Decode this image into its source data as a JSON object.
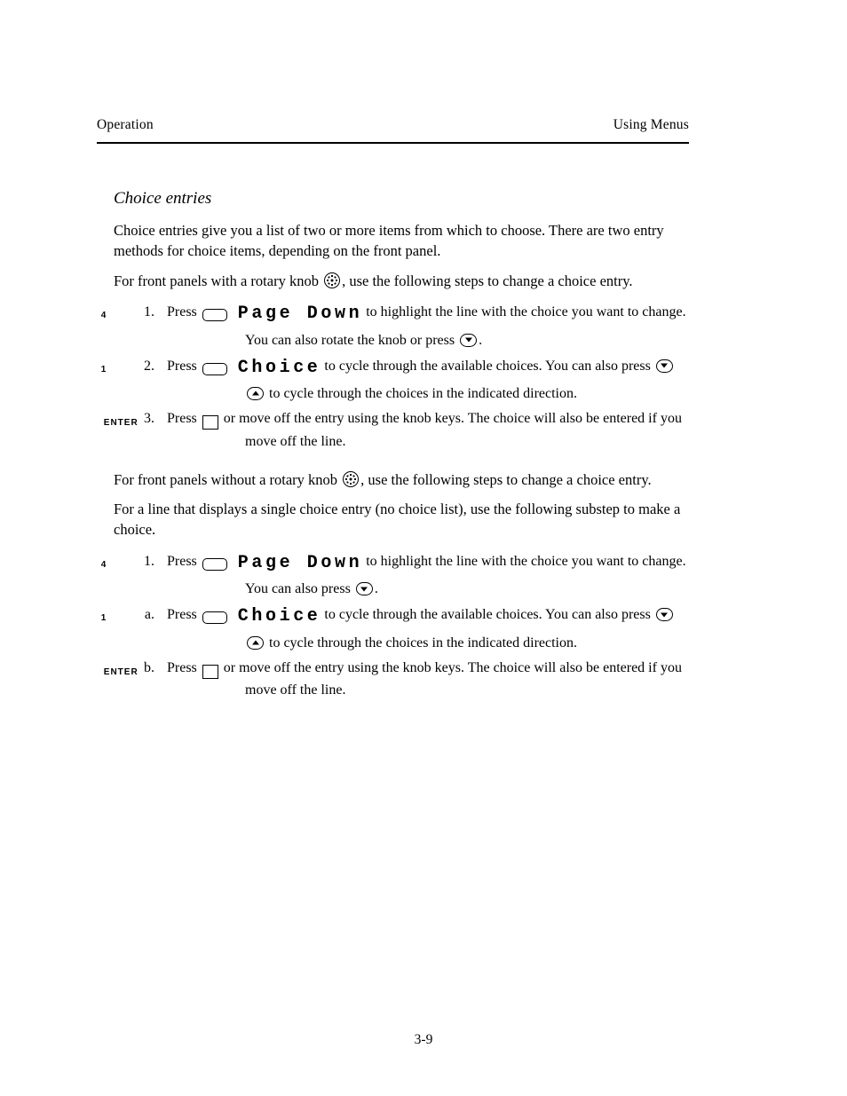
{
  "header": {
    "left": "Operation",
    "right": "Using Menus"
  },
  "intro": {
    "title": "Choice entries",
    "p1": "Choice entries give you a list of two or more items from which to choose. There are two entry methods for choice items, depending on the front panel."
  },
  "front1": {
    "heading_prefix": "For front panels with a rotary knob",
    "heading_icon": "dial-icon",
    "heading_suffix": ", use the following steps to change a choice entry.",
    "steps": [
      {
        "n": "1.",
        "type": "softkey",
        "key": "4",
        "soft": "Page Down",
        "rest": " to highlight the line with the choice you want to change. You can also rotate the knob or press ",
        "arrows": [
          "down"
        ],
        "tail": "."
      },
      {
        "n": "2.",
        "type": "softkey",
        "key": "1",
        "soft": "Choice",
        "rest": " to cycle through the available choices. You can also press ",
        "arrows": [
          "down",
          "up"
        ],
        "tail": " to cycle through the choices in the indicated direction."
      },
      {
        "n": "3.",
        "type": "enter",
        "rest": " or move off the entry using the knob keys. The choice will also be entered if you move off the line."
      }
    ],
    "after_prefix": "For front panels without a rotary knob",
    "after_icon": "dial-icon",
    "after_suffix": ", use the following steps to change a choice entry."
  },
  "front2": {
    "context_p": "For a line that displays a single choice entry (no choice list), use the following substep to make a choice.",
    "steps": [
      {
        "n": "1.",
        "type": "softkey",
        "key": "4",
        "soft": "Page Down",
        "rest": " to highlight the line with the choice you want to change. You can also press ",
        "arrows": [
          "down"
        ],
        "tail": "."
      },
      {
        "n": "a.",
        "type": "softkey",
        "key": "1",
        "soft": "Choice",
        "rest": " to cycle through the available choices. You can also press ",
        "arrows": [
          "down",
          "up"
        ],
        "tail": " to cycle through the choices in the indicated direction."
      },
      {
        "n": "b.",
        "type": "enter",
        "rest": " or move off the entry using the knob keys. The choice will also be entered if you move off the line."
      }
    ]
  },
  "labels": {
    "press": "Press",
    "enter": "ENTER"
  },
  "page_number": "3-9"
}
